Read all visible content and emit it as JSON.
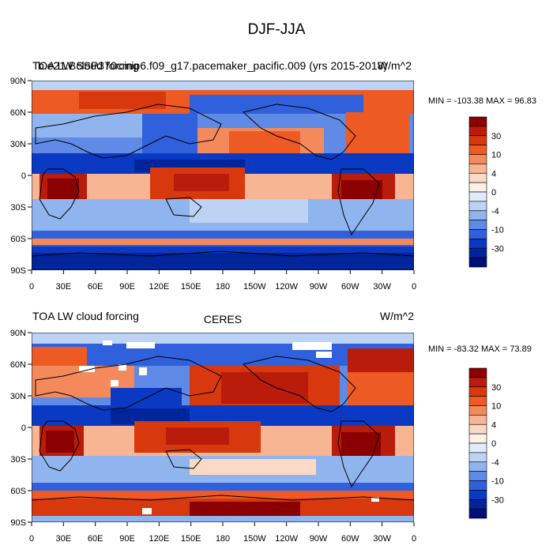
{
  "page_title": "DJF-JJA",
  "panels": [
    {
      "title_left": "TOA LW cloud forcing",
      "title_right": "W/m^2",
      "title_overlap": "b.e21.BSSP370cmip6.f09_g17.pacemaker_pacific.009 (yrs 2015-2018)",
      "minmax": "MIN = -103.38 MAX =  96.83"
    },
    {
      "title_left": "TOA LW cloud forcing",
      "title_center": "CERES",
      "title_right": "W/m^2",
      "minmax": "MIN = -83.32 MAX =  73.89"
    }
  ],
  "axes": {
    "lat_labels": [
      "90N",
      "60N",
      "30N",
      "0",
      "30S",
      "60S",
      "90S"
    ],
    "lon_labels": [
      "0",
      "30E",
      "60E",
      "90E",
      "120E",
      "150E",
      "180",
      "150W",
      "120W",
      "90W",
      "60W",
      "30W",
      "0"
    ]
  },
  "colorbar": {
    "labels": [
      "30",
      "10",
      "4",
      "0",
      "-4",
      "-10",
      "-30"
    ],
    "colors": [
      "#8b0000",
      "#b91c0a",
      "#d8380e",
      "#ee5a24",
      "#f48a5c",
      "#f8b594",
      "#fbd9c4",
      "#fdf0e6",
      "#e1ecfb",
      "#bcd3f5",
      "#8fb4ee",
      "#5f8ae5",
      "#3060dc",
      "#0a3ac4",
      "#00249a",
      "#000f7a"
    ]
  },
  "map_colors": {
    "land": "#000000",
    "missing": "#ffffff"
  }
}
